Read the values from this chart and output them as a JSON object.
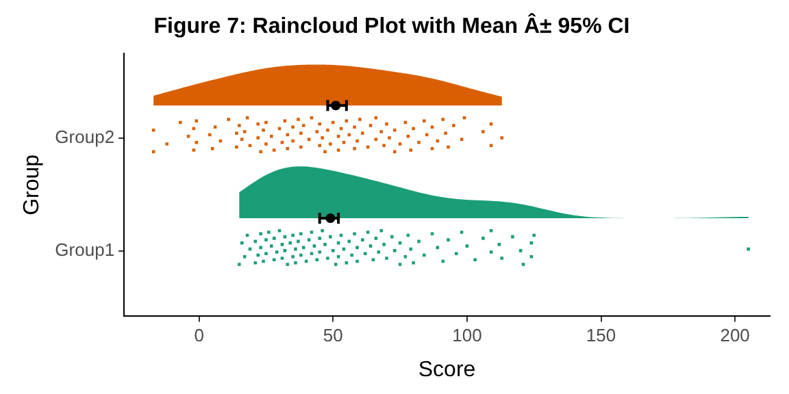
{
  "chart_data": {
    "type": "scatter",
    "title": "Figure 7: Raincloud Plot with Mean Â± 95% CI",
    "xlabel": "Score",
    "ylabel": "Group",
    "orientation": "horizontal",
    "categories": [
      "Group2",
      "Group1"
    ],
    "xlim": [
      -28,
      213
    ],
    "xticks": [
      0,
      50,
      100,
      150,
      200
    ],
    "grid": false,
    "legend": false,
    "series": [
      {
        "marker": "square",
        "color": "#d95f02",
        "values": [
          -17,
          -17,
          -12,
          -7,
          -4,
          -2,
          -2,
          -1,
          -1,
          4,
          5,
          6,
          8,
          11,
          14,
          14,
          15,
          16,
          18,
          17,
          19,
          22,
          22,
          23,
          24,
          25,
          25,
          27,
          28,
          30,
          31,
          32,
          33,
          33,
          35,
          35,
          37,
          38,
          38,
          39,
          41,
          42,
          44,
          45,
          45,
          46,
          47,
          48,
          49,
          50,
          52,
          52,
          53,
          54,
          55,
          56,
          58,
          58,
          59,
          60,
          61,
          63,
          64,
          66,
          66,
          68,
          69,
          70,
          71,
          73,
          73,
          75,
          77,
          78,
          79,
          80,
          82,
          84,
          85,
          87,
          87,
          89,
          91,
          92,
          93,
          95,
          98,
          99,
          106,
          109,
          109,
          113
        ],
        "x": [
          "Group2",
          "Group2",
          "Group2",
          "Group2",
          "Group2",
          "Group2",
          "Group2",
          "Group2",
          "Group2",
          "Group2",
          "Group2",
          "Group2",
          "Group2",
          "Group2",
          "Group2",
          "Group2",
          "Group2",
          "Group2",
          "Group2",
          "Group2",
          "Group2",
          "Group2",
          "Group2",
          "Group2",
          "Group2",
          "Group2",
          "Group2",
          "Group2",
          "Group2",
          "Group2",
          "Group2",
          "Group2",
          "Group2",
          "Group2",
          "Group2",
          "Group2",
          "Group2",
          "Group2",
          "Group2",
          "Group2",
          "Group2",
          "Group2",
          "Group2",
          "Group2",
          "Group2",
          "Group2",
          "Group2",
          "Group2",
          "Group2",
          "Group2",
          "Group2",
          "Group2",
          "Group2",
          "Group2",
          "Group2",
          "Group2",
          "Group2",
          "Group2",
          "Group2",
          "Group2",
          "Group2",
          "Group2",
          "Group2",
          "Group2",
          "Group2",
          "Group2",
          "Group2",
          "Group2",
          "Group2",
          "Group2",
          "Group2",
          "Group2",
          "Group2",
          "Group2",
          "Group2",
          "Group2",
          "Group2",
          "Group2",
          "Group2",
          "Group2",
          "Group2",
          "Group2",
          "Group2",
          "Group2",
          "Group2",
          "Group2",
          "Group2",
          "Group2",
          "Group2",
          "Group2",
          "Group2",
          "Group2"
        ]
      },
      {
        "marker": "square",
        "color": "#1b9e77",
        "values": [
          15,
          16,
          17,
          18,
          19,
          21,
          21,
          22,
          23,
          23,
          24,
          25,
          25,
          26,
          27,
          28,
          28,
          29,
          30,
          31,
          31,
          32,
          32,
          33,
          34,
          35,
          35,
          36,
          36,
          37,
          38,
          38,
          39,
          40,
          41,
          42,
          42,
          43,
          44,
          45,
          45,
          46,
          47,
          48,
          49,
          50,
          51,
          52,
          52,
          53,
          54,
          55,
          56,
          57,
          58,
          59,
          59,
          61,
          62,
          63,
          64,
          65,
          66,
          67,
          68,
          69,
          70,
          72,
          73,
          75,
          75,
          77,
          78,
          79,
          80,
          82,
          84,
          87,
          89,
          91,
          93,
          96,
          98,
          100,
          103,
          106,
          109,
          109,
          112,
          113,
          117,
          120,
          121,
          124,
          124,
          125,
          205
        ],
        "x": [
          "Group1",
          "Group1",
          "Group1",
          "Group1",
          "Group1",
          "Group1",
          "Group1",
          "Group1",
          "Group1",
          "Group1",
          "Group1",
          "Group1",
          "Group1",
          "Group1",
          "Group1",
          "Group1",
          "Group1",
          "Group1",
          "Group1",
          "Group1",
          "Group1",
          "Group1",
          "Group1",
          "Group1",
          "Group1",
          "Group1",
          "Group1",
          "Group1",
          "Group1",
          "Group1",
          "Group1",
          "Group1",
          "Group1",
          "Group1",
          "Group1",
          "Group1",
          "Group1",
          "Group1",
          "Group1",
          "Group1",
          "Group1",
          "Group1",
          "Group1",
          "Group1",
          "Group1",
          "Group1",
          "Group1",
          "Group1",
          "Group1",
          "Group1",
          "Group1",
          "Group1",
          "Group1",
          "Group1",
          "Group1",
          "Group1",
          "Group1",
          "Group1",
          "Group1",
          "Group1",
          "Group1",
          "Group1",
          "Group1",
          "Group1",
          "Group1",
          "Group1",
          "Group1",
          "Group1",
          "Group1",
          "Group1",
          "Group1",
          "Group1",
          "Group1",
          "Group1",
          "Group1",
          "Group1",
          "Group1",
          "Group1",
          "Group1",
          "Group1",
          "Group1",
          "Group1",
          "Group1",
          "Group1",
          "Group1",
          "Group1",
          "Group1",
          "Group1",
          "Group1",
          "Group1",
          "Group1",
          "Group1",
          "Group1",
          "Group1",
          "Group1",
          "Group1",
          "Group1"
        ]
      },
      {
        "marker": "circle",
        "color": "#000000",
        "values": [
          51,
          49
        ],
        "errors": [
          [
            48,
            55
          ],
          [
            45,
            52
          ]
        ]
      }
    ]
  }
}
